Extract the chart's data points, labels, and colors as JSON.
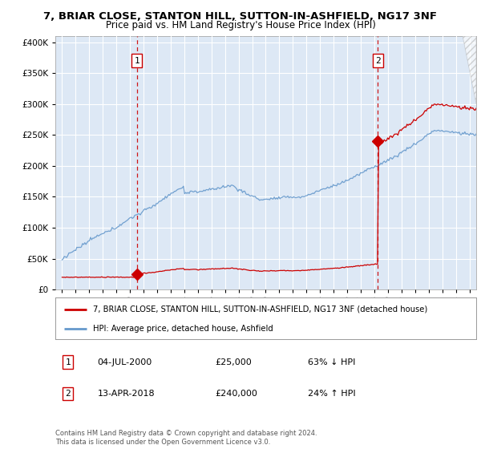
{
  "title": "7, BRIAR CLOSE, STANTON HILL, SUTTON-IN-ASHFIELD, NG17 3NF",
  "subtitle": "Price paid vs. HM Land Registry's House Price Index (HPI)",
  "property_label": "7, BRIAR CLOSE, STANTON HILL, SUTTON-IN-ASHFIELD, NG17 3NF (detached house)",
  "hpi_label": "HPI: Average price, detached house, Ashfield",
  "sale1_date": "04-JUL-2000",
  "sale1_price": 25000,
  "sale1_pct": "63% ↓ HPI",
  "sale2_date": "13-APR-2018",
  "sale2_price": 240000,
  "sale2_pct": "24% ↑ HPI",
  "sale1_year": 2000.5,
  "sale2_year": 2018.25,
  "ylim_max": 410000,
  "property_color": "#cc0000",
  "hpi_color": "#6699cc",
  "background_color": "#dde8f5",
  "grid_color": "#ffffff",
  "copyright_text": "Contains HM Land Registry data © Crown copyright and database right 2024.\nThis data is licensed under the Open Government Licence v3.0."
}
